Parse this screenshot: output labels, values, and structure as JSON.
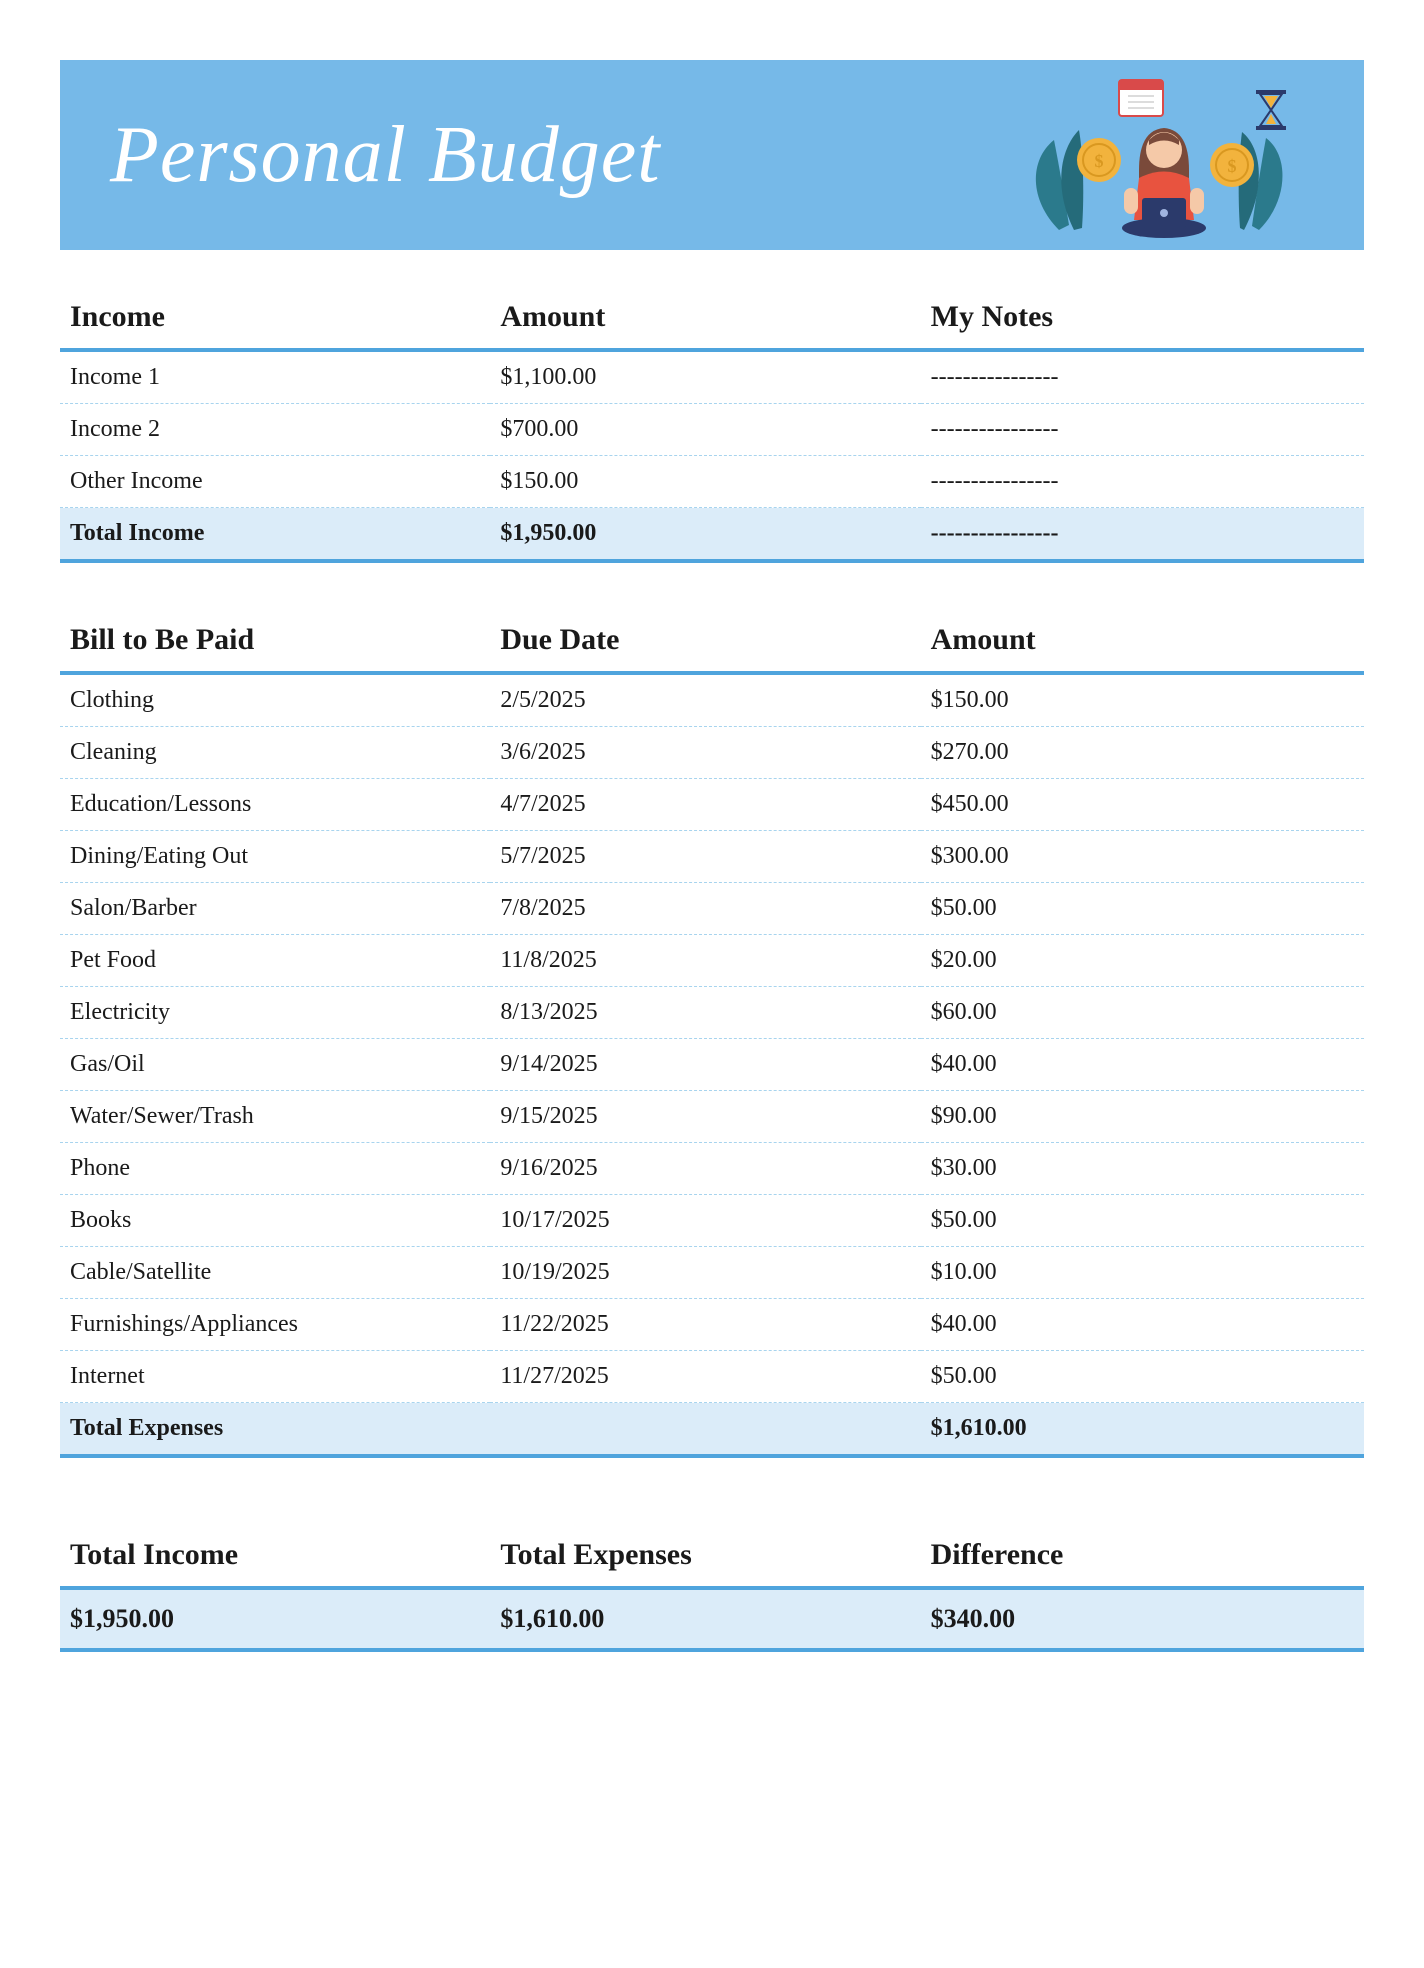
{
  "banner": {
    "title": "Personal Budget",
    "background_color": "#76b9e8",
    "title_color": "#ffffff",
    "title_fontsize": 80,
    "illustration": {
      "leaf_color": "#2b7a8c",
      "person_shirt": "#e8533f",
      "person_hair": "#7a4a3a",
      "person_skin": "#f5c9a8",
      "laptop_color": "#2b3a6b",
      "coin_color": "#f2b33d",
      "calendar_frame": "#d94a4a",
      "calendar_fill": "#ffffff",
      "hourglass_frame": "#2b3a6b",
      "hourglass_sand": "#f2b33d"
    }
  },
  "income_table": {
    "headers": [
      "Income",
      "Amount",
      "My Notes"
    ],
    "rows": [
      {
        "label": "Income 1",
        "amount": "$1,100.00",
        "notes": "----------------"
      },
      {
        "label": "Income 2",
        "amount": "$700.00",
        "notes": "----------------"
      },
      {
        "label": "Other Income",
        "amount": "$150.00",
        "notes": "----------------"
      }
    ],
    "total": {
      "label": "Total Income",
      "amount": "$1,950.00",
      "notes": "----------------"
    }
  },
  "bills_table": {
    "headers": [
      "Bill to Be Paid",
      "Due Date",
      "Amount"
    ],
    "rows": [
      {
        "label": "Clothing",
        "due": "2/5/2025",
        "amount": "$150.00"
      },
      {
        "label": "Cleaning",
        "due": "3/6/2025",
        "amount": "$270.00"
      },
      {
        "label": "Education/Lessons",
        "due": "4/7/2025",
        "amount": "$450.00"
      },
      {
        "label": "Dining/Eating Out",
        "due": "5/7/2025",
        "amount": "$300.00"
      },
      {
        "label": "Salon/Barber",
        "due": "7/8/2025",
        "amount": "$50.00"
      },
      {
        "label": "Pet Food",
        "due": "11/8/2025",
        "amount": "$20.00"
      },
      {
        "label": "Electricity",
        "due": "8/13/2025",
        "amount": "$60.00"
      },
      {
        "label": "Gas/Oil",
        "due": "9/14/2025",
        "amount": "$40.00"
      },
      {
        "label": "Water/Sewer/Trash",
        "due": "9/15/2025",
        "amount": "$90.00"
      },
      {
        "label": "Phone",
        "due": "9/16/2025",
        "amount": "$30.00"
      },
      {
        "label": "Books",
        "due": "10/17/2025",
        "amount": "$50.00"
      },
      {
        "label": "Cable/Satellite",
        "due": "10/19/2025",
        "amount": "$10.00"
      },
      {
        "label": "Furnishings/Appliances",
        "due": "11/22/2025",
        "amount": "$40.00"
      },
      {
        "label": "Internet",
        "due": "11/27/2025",
        "amount": "$50.00"
      }
    ],
    "total": {
      "label": "Total Expenses",
      "due": "",
      "amount": "$1,610.00"
    }
  },
  "summary_table": {
    "headers": [
      "Total Income",
      "Total Expenses",
      "Difference"
    ],
    "values": [
      "$1,950.00",
      "$1,610.00",
      "$340.00"
    ]
  },
  "styling": {
    "body_bg": "#ffffff",
    "accent_border": "#4fa4dd",
    "row_dash": "#a8d4ee",
    "total_bg": "#dbecf9",
    "text_color": "#1a1a1a",
    "header_fontsize": 30,
    "cell_fontsize": 24,
    "summary_cell_fontsize": 26,
    "font_family_serif": "Georgia",
    "font_family_slab": "Rockwell",
    "font_family_script": "Brush Script MT"
  }
}
